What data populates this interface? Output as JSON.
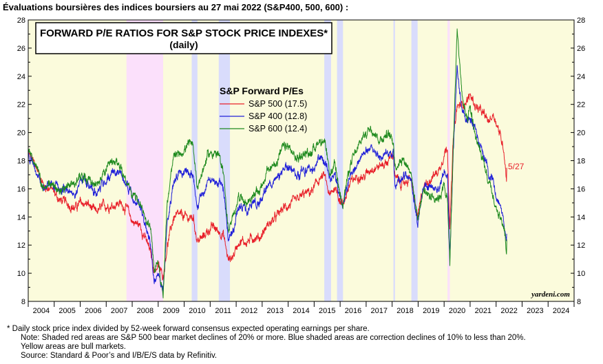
{
  "page_heading": "Évaluations boursières des indices boursiers au 27 mai 2022 (S&P400, 500, 600) :",
  "chart_data": {
    "type": "line",
    "title": "FORWARD P/E RATIOS FOR S&P STOCK PRICE INDEXES*",
    "subtitle": "(daily)",
    "legend_title": "S&P Forward P/Es",
    "legend_position": "top-center",
    "x_tick_labels": [
      "2004",
      "2005",
      "2006",
      "2007",
      "2008",
      "2009",
      "2010",
      "2011",
      "2012",
      "2013",
      "2014",
      "2015",
      "2016",
      "2017",
      "2018",
      "2019",
      "2020",
      "2021",
      "2022",
      "2023",
      "2024"
    ],
    "xlim": [
      2004.0,
      2025.0
    ],
    "ylim": [
      8,
      28
    ],
    "y_ticks": [
      8,
      10,
      12,
      14,
      16,
      18,
      20,
      22,
      24,
      26,
      28
    ],
    "grid": false,
    "background_color": "#fbfbdc",
    "end_annotation": "5/27",
    "watermark": "yardeni.com",
    "shaded_periods": {
      "bear_market_color": "#fbe0fb",
      "correction_color": "#d9dcfc",
      "bear_markets": [
        [
          2007.78,
          2009.19
        ],
        [
          2020.13,
          2020.22
        ]
      ],
      "corrections": [
        [
          2010.29,
          2010.51
        ],
        [
          2011.33,
          2011.76
        ],
        [
          2015.39,
          2015.65
        ],
        [
          2015.88,
          2016.11
        ],
        [
          2018.05,
          2018.11
        ],
        [
          2018.74,
          2018.98
        ]
      ]
    },
    "series": [
      {
        "name": "S&P 500 (17.5)",
        "color": "#e8202a",
        "points": [
          [
            2004.0,
            18.5
          ],
          [
            2004.3,
            17.6
          ],
          [
            2004.6,
            16.2
          ],
          [
            2004.9,
            16.0
          ],
          [
            2005.2,
            15.2
          ],
          [
            2005.5,
            15.0
          ],
          [
            2005.8,
            14.6
          ],
          [
            2006.0,
            15.0
          ],
          [
            2006.3,
            14.9
          ],
          [
            2006.6,
            14.3
          ],
          [
            2006.9,
            14.8
          ],
          [
            2007.2,
            14.8
          ],
          [
            2007.5,
            15.0
          ],
          [
            2007.8,
            14.6
          ],
          [
            2008.0,
            13.7
          ],
          [
            2008.3,
            13.4
          ],
          [
            2008.5,
            12.5
          ],
          [
            2008.7,
            11.5
          ],
          [
            2008.85,
            10.2
          ],
          [
            2009.0,
            10.5
          ],
          [
            2009.19,
            9.8
          ],
          [
            2009.35,
            12.0
          ],
          [
            2009.6,
            14.0
          ],
          [
            2009.9,
            14.1
          ],
          [
            2010.2,
            13.9
          ],
          [
            2010.35,
            14.0
          ],
          [
            2010.5,
            12.3
          ],
          [
            2010.7,
            12.5
          ],
          [
            2010.9,
            13.0
          ],
          [
            2011.1,
            13.3
          ],
          [
            2011.3,
            13.0
          ],
          [
            2011.5,
            12.8
          ],
          [
            2011.7,
            10.9
          ],
          [
            2011.9,
            11.3
          ],
          [
            2012.1,
            12.3
          ],
          [
            2012.4,
            12.2
          ],
          [
            2012.7,
            12.6
          ],
          [
            2012.9,
            12.5
          ],
          [
            2013.2,
            13.4
          ],
          [
            2013.5,
            13.9
          ],
          [
            2013.8,
            14.6
          ],
          [
            2014.0,
            14.8
          ],
          [
            2014.3,
            15.1
          ],
          [
            2014.6,
            15.6
          ],
          [
            2014.9,
            15.8
          ],
          [
            2015.2,
            16.7
          ],
          [
            2015.4,
            16.9
          ],
          [
            2015.6,
            15.4
          ],
          [
            2015.8,
            16.2
          ],
          [
            2016.0,
            15.2
          ],
          [
            2016.1,
            14.9
          ],
          [
            2016.4,
            16.4
          ],
          [
            2016.7,
            17.0
          ],
          [
            2016.9,
            16.8
          ],
          [
            2017.2,
            17.5
          ],
          [
            2017.5,
            17.6
          ],
          [
            2017.8,
            17.9
          ],
          [
            2018.05,
            18.5
          ],
          [
            2018.11,
            16.8
          ],
          [
            2018.4,
            16.3
          ],
          [
            2018.7,
            16.8
          ],
          [
            2018.9,
            14.8
          ],
          [
            2018.98,
            13.9
          ],
          [
            2019.2,
            16.1
          ],
          [
            2019.5,
            16.8
          ],
          [
            2019.8,
            17.3
          ],
          [
            2020.0,
            18.5
          ],
          [
            2020.13,
            19.0
          ],
          [
            2020.22,
            13.1
          ],
          [
            2020.35,
            19.5
          ],
          [
            2020.5,
            21.8
          ],
          [
            2020.7,
            22.0
          ],
          [
            2020.9,
            22.3
          ],
          [
            2021.0,
            22.7
          ],
          [
            2021.2,
            21.9
          ],
          [
            2021.5,
            21.3
          ],
          [
            2021.7,
            20.8
          ],
          [
            2021.9,
            21.3
          ],
          [
            2022.0,
            20.8
          ],
          [
            2022.2,
            19.5
          ],
          [
            2022.3,
            18.8
          ],
          [
            2022.36,
            17.6
          ],
          [
            2022.4,
            16.6
          ],
          [
            2022.41,
            17.5
          ]
        ]
      },
      {
        "name": "S&P 400 (12.8)",
        "color": "#2020d8",
        "points": [
          [
            2004.0,
            18.4
          ],
          [
            2004.3,
            17.3
          ],
          [
            2004.6,
            16.0
          ],
          [
            2004.9,
            16.5
          ],
          [
            2005.2,
            15.9
          ],
          [
            2005.5,
            16.1
          ],
          [
            2005.8,
            15.7
          ],
          [
            2006.0,
            16.6
          ],
          [
            2006.3,
            16.5
          ],
          [
            2006.6,
            15.7
          ],
          [
            2006.9,
            16.4
          ],
          [
            2007.2,
            17.1
          ],
          [
            2007.5,
            17.3
          ],
          [
            2007.8,
            16.3
          ],
          [
            2008.0,
            15.3
          ],
          [
            2008.3,
            14.7
          ],
          [
            2008.5,
            13.5
          ],
          [
            2008.7,
            12.0
          ],
          [
            2008.85,
            9.2
          ],
          [
            2009.0,
            10.2
          ],
          [
            2009.19,
            8.5
          ],
          [
            2009.35,
            14.0
          ],
          [
            2009.6,
            16.6
          ],
          [
            2009.9,
            17.3
          ],
          [
            2010.2,
            17.2
          ],
          [
            2010.35,
            17.1
          ],
          [
            2010.5,
            14.8
          ],
          [
            2010.7,
            15.6
          ],
          [
            2010.9,
            16.6
          ],
          [
            2011.1,
            16.6
          ],
          [
            2011.3,
            16.4
          ],
          [
            2011.5,
            16.0
          ],
          [
            2011.7,
            12.5
          ],
          [
            2011.9,
            13.3
          ],
          [
            2012.1,
            14.8
          ],
          [
            2012.4,
            14.4
          ],
          [
            2012.7,
            14.9
          ],
          [
            2012.9,
            15.1
          ],
          [
            2013.2,
            16.2
          ],
          [
            2013.5,
            16.5
          ],
          [
            2013.8,
            17.1
          ],
          [
            2014.0,
            17.7
          ],
          [
            2014.3,
            16.9
          ],
          [
            2014.6,
            17.4
          ],
          [
            2014.9,
            17.3
          ],
          [
            2015.2,
            18.2
          ],
          [
            2015.4,
            18.1
          ],
          [
            2015.6,
            16.7
          ],
          [
            2015.8,
            17.1
          ],
          [
            2016.0,
            15.5
          ],
          [
            2016.1,
            14.8
          ],
          [
            2016.4,
            17.2
          ],
          [
            2016.7,
            17.9
          ],
          [
            2016.9,
            18.5
          ],
          [
            2017.2,
            19.0
          ],
          [
            2017.5,
            18.2
          ],
          [
            2017.8,
            18.4
          ],
          [
            2018.05,
            18.4
          ],
          [
            2018.11,
            16.2
          ],
          [
            2018.4,
            16.9
          ],
          [
            2018.7,
            16.8
          ],
          [
            2018.9,
            14.4
          ],
          [
            2018.98,
            13.6
          ],
          [
            2019.2,
            16.0
          ],
          [
            2019.5,
            15.9
          ],
          [
            2019.8,
            16.0
          ],
          [
            2020.0,
            17.2
          ],
          [
            2020.13,
            16.8
          ],
          [
            2020.22,
            10.8
          ],
          [
            2020.35,
            18.8
          ],
          [
            2020.5,
            24.5
          ],
          [
            2020.7,
            21.5
          ],
          [
            2020.9,
            20.8
          ],
          [
            2021.0,
            21.0
          ],
          [
            2021.2,
            20.2
          ],
          [
            2021.5,
            18.6
          ],
          [
            2021.7,
            17.2
          ],
          [
            2021.9,
            16.6
          ],
          [
            2022.0,
            15.5
          ],
          [
            2022.2,
            14.6
          ],
          [
            2022.3,
            13.8
          ],
          [
            2022.36,
            12.9
          ],
          [
            2022.4,
            12.1
          ],
          [
            2022.41,
            12.8
          ]
        ]
      },
      {
        "name": "S&P 600 (12.4)",
        "color": "#1f8a1f",
        "points": [
          [
            2004.0,
            18.9
          ],
          [
            2004.3,
            17.6
          ],
          [
            2004.6,
            15.8
          ],
          [
            2004.9,
            16.6
          ],
          [
            2005.2,
            15.6
          ],
          [
            2005.5,
            16.4
          ],
          [
            2005.8,
            16.2
          ],
          [
            2006.0,
            17.1
          ],
          [
            2006.3,
            16.9
          ],
          [
            2006.6,
            16.1
          ],
          [
            2006.9,
            17.1
          ],
          [
            2007.2,
            17.8
          ],
          [
            2007.5,
            17.7
          ],
          [
            2007.8,
            16.5
          ],
          [
            2008.0,
            15.6
          ],
          [
            2008.3,
            15.0
          ],
          [
            2008.5,
            13.9
          ],
          [
            2008.7,
            13.3
          ],
          [
            2008.85,
            10.0
          ],
          [
            2009.0,
            11.0
          ],
          [
            2009.19,
            8.2
          ],
          [
            2009.35,
            15.2
          ],
          [
            2009.6,
            18.2
          ],
          [
            2009.9,
            18.6
          ],
          [
            2010.2,
            19.2
          ],
          [
            2010.35,
            18.9
          ],
          [
            2010.5,
            16.2
          ],
          [
            2010.7,
            17.2
          ],
          [
            2010.9,
            18.4
          ],
          [
            2011.1,
            18.6
          ],
          [
            2011.3,
            18.4
          ],
          [
            2011.5,
            17.4
          ],
          [
            2011.7,
            13.0
          ],
          [
            2011.9,
            14.0
          ],
          [
            2012.1,
            15.6
          ],
          [
            2012.4,
            15.0
          ],
          [
            2012.7,
            15.6
          ],
          [
            2012.9,
            15.9
          ],
          [
            2013.2,
            17.2
          ],
          [
            2013.5,
            17.8
          ],
          [
            2013.8,
            18.9
          ],
          [
            2014.0,
            19.0
          ],
          [
            2014.3,
            18.1
          ],
          [
            2014.6,
            18.5
          ],
          [
            2014.9,
            18.6
          ],
          [
            2015.2,
            19.5
          ],
          [
            2015.4,
            19.2
          ],
          [
            2015.6,
            17.0
          ],
          [
            2015.8,
            17.6
          ],
          [
            2016.0,
            15.6
          ],
          [
            2016.1,
            15.1
          ],
          [
            2016.4,
            17.8
          ],
          [
            2016.7,
            18.9
          ],
          [
            2016.9,
            19.8
          ],
          [
            2017.2,
            20.4
          ],
          [
            2017.5,
            19.5
          ],
          [
            2017.8,
            19.9
          ],
          [
            2018.05,
            19.4
          ],
          [
            2018.11,
            17.6
          ],
          [
            2018.4,
            18.2
          ],
          [
            2018.7,
            17.4
          ],
          [
            2018.9,
            14.9
          ],
          [
            2018.98,
            13.9
          ],
          [
            2019.2,
            15.9
          ],
          [
            2019.5,
            15.5
          ],
          [
            2019.8,
            15.4
          ],
          [
            2020.0,
            16.2
          ],
          [
            2020.13,
            15.2
          ],
          [
            2020.22,
            10.5
          ],
          [
            2020.35,
            18.9
          ],
          [
            2020.5,
            27.3
          ],
          [
            2020.7,
            22.5
          ],
          [
            2020.9,
            20.6
          ],
          [
            2021.0,
            21.7
          ],
          [
            2021.2,
            19.8
          ],
          [
            2021.5,
            17.8
          ],
          [
            2021.7,
            16.5
          ],
          [
            2021.9,
            15.3
          ],
          [
            2022.0,
            14.5
          ],
          [
            2022.2,
            13.8
          ],
          [
            2022.3,
            13.3
          ],
          [
            2022.36,
            12.3
          ],
          [
            2022.4,
            11.5
          ],
          [
            2022.41,
            12.4
          ]
        ]
      }
    ]
  },
  "footnotes": [
    "*  Daily stock price index divided by 52-week forward consensus expected operating earnings per share.",
    "Note: Shaded red areas are S&P 500 bear market declines of 20% or more. Blue shaded areas are correction declines of 10% to less than 20%.",
    "Yellow areas are bull markets.",
    "Source: Standard & Poor’s and I/B/E/S data by Refinitiv."
  ]
}
